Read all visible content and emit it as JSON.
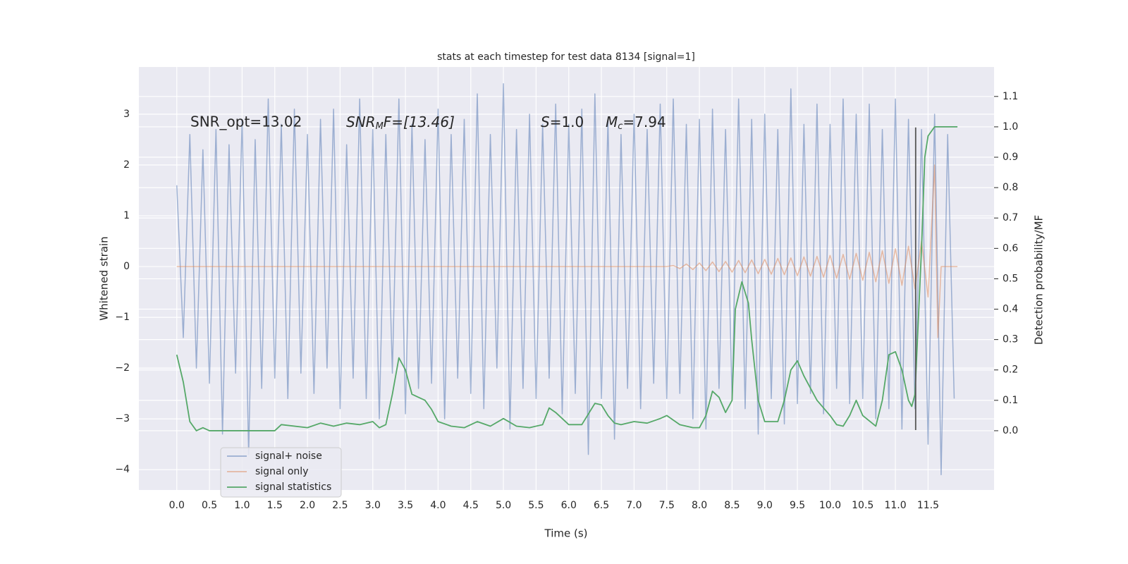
{
  "chart_data": {
    "type": "line",
    "title": "stats at each timestep for test data 8134 [signal=1]",
    "xlabel": "Time (s)",
    "ylabel": "Whitened strain",
    "y2label": "Detection probability/MF",
    "xlim": [
      -0.58,
      12.51
    ],
    "ylim": [
      -4.4,
      3.93
    ],
    "y2lim": [
      -0.195,
      1.197
    ],
    "xticks": [
      {
        "value": 0,
        "label": "0.0"
      },
      0.5,
      {
        "value": 1,
        "label": "1.0"
      },
      1.5,
      {
        "value": 2,
        "label": "2.0"
      },
      2.5,
      {
        "value": 3,
        "label": "3.0"
      },
      3.5,
      {
        "value": 4,
        "label": "4.0"
      },
      4.5,
      {
        "value": 5,
        "label": "5.0"
      },
      5.5,
      {
        "value": 6,
        "label": "6.0"
      },
      6.5,
      {
        "value": 7,
        "label": "7.0"
      },
      7.5,
      {
        "value": 8,
        "label": "8.0"
      },
      8.5,
      {
        "value": 9,
        "label": "9.0"
      },
      9.5,
      {
        "value": 10,
        "label": "10.0"
      },
      10.5,
      {
        "value": 11,
        "label": "11.0"
      },
      11.5
    ],
    "yticks": [
      {
        "value": -4,
        "label": "−4"
      },
      {
        "value": -3,
        "label": "−3"
      },
      {
        "value": -2,
        "label": "−2"
      },
      {
        "value": -1,
        "label": "−1"
      },
      0,
      1,
      2,
      3
    ],
    "y2ticks": [
      {
        "value": 0,
        "label": "0.0"
      },
      0.1,
      0.2,
      0.3,
      0.4,
      0.5,
      0.6,
      0.7,
      0.8,
      0.9,
      {
        "value": 1,
        "label": "1.0"
      },
      1.1
    ],
    "grid": true,
    "legend": "lower left",
    "annotations": [
      {
        "text": "SNR_opt=13.02"
      },
      {
        "main": "SNR",
        "sub": "M",
        "rest": "F=[13.46]"
      },
      {
        "main": "S",
        "rest": "=1.0"
      },
      {
        "main": "M",
        "sub": "c",
        "rest": "=7.94"
      }
    ],
    "vline": {
      "x": 11.31,
      "ymin": -3.22,
      "ymax": 2.74,
      "color": "#555555"
    },
    "series": [
      {
        "name": "signal+ noise",
        "color": "#4c72b0",
        "opacity": 0.5,
        "x": [
          0.0,
          0.1,
          0.2,
          0.3,
          0.4,
          0.5,
          0.6,
          0.7,
          0.8,
          0.9,
          1.0,
          1.1,
          1.2,
          1.3,
          1.4,
          1.5,
          1.6,
          1.7,
          1.8,
          1.9,
          2.0,
          2.1,
          2.2,
          2.3,
          2.4,
          2.5,
          2.6,
          2.7,
          2.8,
          2.9,
          3.0,
          3.1,
          3.2,
          3.3,
          3.4,
          3.5,
          3.6,
          3.7,
          3.8,
          3.9,
          4.0,
          4.1,
          4.2,
          4.3,
          4.4,
          4.5,
          4.6,
          4.7,
          4.8,
          4.9,
          5.0,
          5.1,
          5.2,
          5.3,
          5.4,
          5.5,
          5.6,
          5.7,
          5.8,
          5.9,
          6.0,
          6.1,
          6.2,
          6.3,
          6.4,
          6.5,
          6.6,
          6.7,
          6.8,
          6.9,
          7.0,
          7.1,
          7.2,
          7.3,
          7.4,
          7.5,
          7.6,
          7.7,
          7.8,
          7.9,
          8.0,
          8.1,
          8.2,
          8.3,
          8.4,
          8.5,
          8.6,
          8.7,
          8.8,
          8.9,
          9.0,
          9.1,
          9.2,
          9.3,
          9.4,
          9.5,
          9.6,
          9.7,
          9.8,
          9.9,
          10.0,
          10.1,
          10.2,
          10.3,
          10.4,
          10.5,
          10.6,
          10.7,
          10.8,
          10.9,
          11.0,
          11.1,
          11.2,
          11.3,
          11.4,
          11.5,
          11.6,
          11.7,
          11.8,
          11.9
        ],
        "values": [
          1.6,
          -1.4,
          2.6,
          -2.0,
          2.3,
          -2.3,
          2.7,
          -3.3,
          2.4,
          -2.1,
          2.9,
          -3.7,
          2.5,
          -2.4,
          3.3,
          -2.2,
          2.8,
          -2.6,
          3.1,
          -2.1,
          2.6,
          -2.5,
          2.9,
          -2.0,
          3.1,
          -2.8,
          2.4,
          -2.2,
          3.3,
          -2.6,
          2.7,
          -3.0,
          2.6,
          -2.1,
          3.3,
          -2.9,
          2.8,
          -2.4,
          2.5,
          -2.3,
          3.1,
          -3.0,
          2.6,
          -2.2,
          2.9,
          -2.5,
          3.4,
          -2.8,
          2.6,
          -2.0,
          3.6,
          -3.2,
          2.7,
          -2.4,
          3.0,
          -2.6,
          2.8,
          -2.2,
          3.2,
          -2.9,
          2.8,
          -2.5,
          3.1,
          -3.7,
          3.4,
          -2.6,
          2.9,
          -3.4,
          2.6,
          -2.4,
          3.0,
          -2.8,
          2.7,
          -2.3,
          3.2,
          -2.6,
          3.3,
          -2.5,
          2.8,
          -3.0,
          2.9,
          -3.2,
          3.1,
          -2.4,
          2.7,
          -2.6,
          3.3,
          -2.8,
          2.9,
          -3.3,
          3.0,
          -2.6,
          2.7,
          -3.1,
          3.5,
          -2.7,
          2.8,
          -2.5,
          3.2,
          -2.9,
          2.8,
          -2.4,
          3.3,
          -2.7,
          3.0,
          -2.6,
          3.2,
          -3.0,
          2.7,
          -2.8,
          3.3,
          -3.2,
          2.9,
          -2.8,
          2.7,
          -3.5,
          3.0,
          -4.1,
          2.6,
          -2.6
        ]
      },
      {
        "name": "signal only",
        "color": "#dd8452",
        "opacity": 0.5,
        "x": [
          0.0,
          7.5,
          7.6,
          7.7,
          7.8,
          7.9,
          8.0,
          8.1,
          8.2,
          8.3,
          8.4,
          8.5,
          8.6,
          8.7,
          8.8,
          8.9,
          9.0,
          9.1,
          9.2,
          9.3,
          9.4,
          9.5,
          9.6,
          9.7,
          9.8,
          9.9,
          10.0,
          10.1,
          10.2,
          10.3,
          10.4,
          10.5,
          10.6,
          10.7,
          10.8,
          10.9,
          11.0,
          11.1,
          11.2,
          11.3,
          11.4,
          11.5,
          11.6,
          11.65,
          11.7,
          11.95
        ],
        "values": [
          0,
          0,
          0.02,
          -0.04,
          0.05,
          -0.06,
          0.07,
          -0.08,
          0.09,
          -0.1,
          0.1,
          -0.11,
          0.12,
          -0.12,
          0.13,
          -0.14,
          0.14,
          -0.15,
          0.16,
          -0.16,
          0.17,
          -0.18,
          0.19,
          -0.19,
          0.2,
          -0.21,
          0.22,
          -0.23,
          0.24,
          -0.25,
          0.26,
          -0.27,
          0.28,
          -0.3,
          0.31,
          -0.33,
          0.35,
          -0.37,
          0.4,
          -0.44,
          0.5,
          -0.6,
          2.0,
          -1.4,
          0,
          0
        ]
      },
      {
        "name": "signal statistics",
        "color": "#55a868",
        "opacity": 1,
        "axis": "y2",
        "x": [
          0.0,
          0.1,
          0.2,
          0.3,
          0.4,
          0.5,
          1.0,
          1.5,
          1.6,
          2.0,
          2.2,
          2.4,
          2.6,
          2.8,
          3.0,
          3.1,
          3.2,
          3.3,
          3.4,
          3.5,
          3.6,
          3.7,
          3.8,
          3.9,
          4.0,
          4.2,
          4.4,
          4.6,
          4.8,
          5.0,
          5.2,
          5.4,
          5.6,
          5.7,
          5.8,
          6.0,
          6.2,
          6.4,
          6.5,
          6.6,
          6.7,
          6.8,
          7.0,
          7.2,
          7.4,
          7.5,
          7.7,
          7.9,
          8.0,
          8.1,
          8.2,
          8.3,
          8.4,
          8.5,
          8.55,
          8.65,
          8.75,
          8.8,
          8.9,
          9.0,
          9.2,
          9.3,
          9.4,
          9.5,
          9.6,
          9.8,
          10.0,
          10.1,
          10.2,
          10.3,
          10.4,
          10.5,
          10.7,
          10.8,
          10.9,
          11.0,
          11.1,
          11.2,
          11.25,
          11.3,
          11.4,
          11.45,
          11.5,
          11.6,
          11.95
        ],
        "values": [
          0.25,
          0.16,
          0.03,
          0.0,
          0.01,
          0.0,
          0.0,
          0.0,
          0.02,
          0.01,
          0.025,
          0.015,
          0.025,
          0.02,
          0.03,
          0.01,
          0.02,
          0.12,
          0.24,
          0.2,
          0.12,
          0.11,
          0.1,
          0.07,
          0.03,
          0.015,
          0.01,
          0.03,
          0.015,
          0.04,
          0.015,
          0.01,
          0.02,
          0.075,
          0.06,
          0.02,
          0.02,
          0.09,
          0.085,
          0.05,
          0.025,
          0.02,
          0.03,
          0.025,
          0.04,
          0.05,
          0.02,
          0.01,
          0.01,
          0.05,
          0.13,
          0.11,
          0.06,
          0.1,
          0.4,
          0.49,
          0.42,
          0.3,
          0.1,
          0.03,
          0.03,
          0.1,
          0.2,
          0.23,
          0.18,
          0.1,
          0.05,
          0.02,
          0.015,
          0.05,
          0.1,
          0.05,
          0.015,
          0.1,
          0.25,
          0.26,
          0.2,
          0.1,
          0.08,
          0.12,
          0.6,
          0.9,
          0.97,
          1.0,
          1.0
        ]
      }
    ]
  }
}
